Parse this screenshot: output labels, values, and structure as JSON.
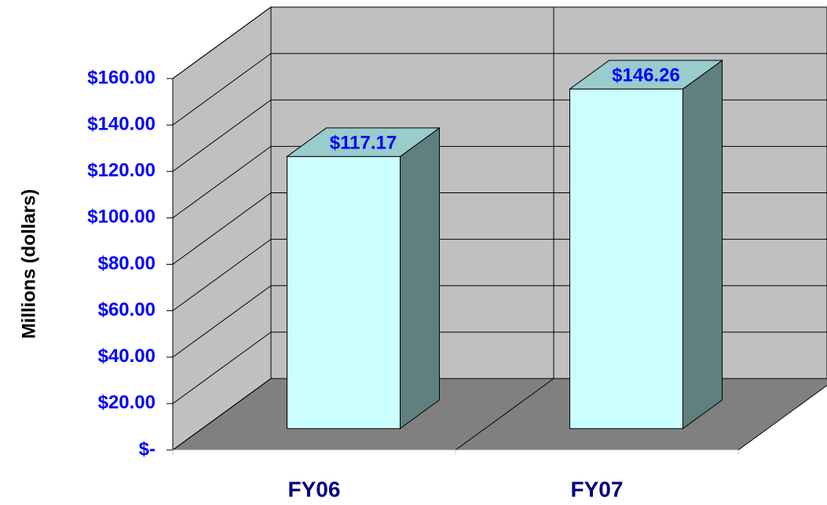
{
  "chart_data": {
    "type": "bar",
    "y_label": "Millions (dollars)",
    "categories": [
      "FY06",
      "FY07"
    ],
    "values": [
      117.17,
      146.26
    ],
    "value_labels": [
      "$117.17",
      "$146.26"
    ],
    "color": "#ccffff",
    "ylim": [
      0,
      160
    ],
    "yticks": [
      {
        "value": 0,
        "label": "$-"
      },
      {
        "value": 20,
        "label": "$20.00"
      },
      {
        "value": 40,
        "label": "$40.00"
      },
      {
        "value": 60,
        "label": "$60.00"
      },
      {
        "value": 80,
        "label": "$80.00"
      },
      {
        "value": 100,
        "label": "$100.00"
      },
      {
        "value": 120,
        "label": "$120.00"
      },
      {
        "value": 140,
        "label": "$140.00"
      },
      {
        "value": 160,
        "label": "$160.00"
      }
    ],
    "grid": true
  }
}
